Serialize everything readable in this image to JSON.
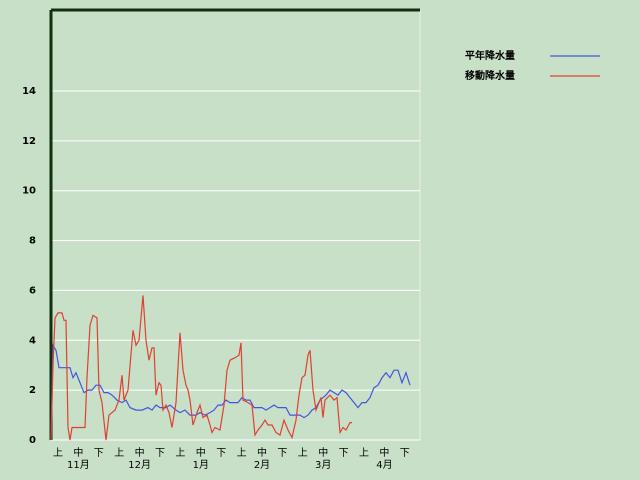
{
  "chart_data": {
    "type": "line",
    "categories": [
      "上",
      "中",
      "下",
      "上",
      "中",
      "下",
      "上",
      "中",
      "下",
      "上",
      "中",
      "下",
      "上",
      "中",
      "下",
      "上",
      "中",
      "下"
    ],
    "months": [
      "11月",
      "12月",
      "1月",
      "2月",
      "3月",
      "4月"
    ],
    "xlim": [
      0,
      369
    ],
    "ylim": [
      0,
      17.25
    ],
    "yticks": [
      0,
      2,
      4,
      6,
      8,
      10,
      12,
      14
    ],
    "grid": true,
    "legend": "top-right",
    "series": [
      {
        "name": "平年降水量",
        "color": "#4455dd",
        "x": [
          0,
          2,
          5,
          8,
          14,
          19,
          22,
          25,
          29,
          33,
          37,
          41,
          45,
          49,
          53,
          57,
          61,
          66,
          71,
          75,
          79,
          85,
          91,
          97,
          101,
          105,
          109,
          115,
          119,
          125,
          129,
          134,
          139,
          145,
          149,
          154,
          159,
          163,
          167,
          171,
          175,
          179,
          183,
          187,
          191,
          195,
          199,
          203,
          207,
          211,
          215,
          219,
          223,
          227,
          231,
          235,
          239,
          245,
          249,
          253,
          257,
          261,
          265,
          269,
          275,
          279,
          283,
          287,
          291,
          295,
          299,
          303,
          307,
          311,
          315,
          319,
          323,
          327,
          331,
          335,
          339,
          343,
          347,
          351,
          355,
          359
        ],
        "values": [
          0,
          3.8,
          3.6,
          2.9,
          2.9,
          2.9,
          2.5,
          2.7,
          2.3,
          1.9,
          2.0,
          2.0,
          2.2,
          2.2,
          1.9,
          1.9,
          1.8,
          1.6,
          1.5,
          1.6,
          1.3,
          1.2,
          1.2,
          1.3,
          1.2,
          1.4,
          1.3,
          1.3,
          1.4,
          1.2,
          1.1,
          1.2,
          1.0,
          1.0,
          1.1,
          1.0,
          1.1,
          1.2,
          1.4,
          1.4,
          1.6,
          1.5,
          1.5,
          1.5,
          1.7,
          1.6,
          1.6,
          1.3,
          1.3,
          1.3,
          1.2,
          1.3,
          1.4,
          1.3,
          1.3,
          1.3,
          1.0,
          1.0,
          1.0,
          0.9,
          1.0,
          1.2,
          1.3,
          1.6,
          1.8,
          2.0,
          1.9,
          1.8,
          2.0,
          1.9,
          1.7,
          1.5,
          1.3,
          1.5,
          1.5,
          1.7,
          2.1,
          2.2,
          2.5,
          2.7,
          2.5,
          2.8,
          2.8,
          2.3,
          2.7,
          2.2
        ]
      },
      {
        "name": "移動降水量",
        "color": "#e04030",
        "x": [
          0,
          2,
          4,
          7,
          11,
          13,
          15,
          17,
          19,
          21,
          29,
          34,
          36,
          39,
          42,
          46,
          48,
          51,
          55,
          58,
          64,
          68,
          71,
          73,
          77,
          82,
          85,
          88,
          92,
          95,
          98,
          101,
          103,
          105,
          108,
          110,
          112,
          115,
          118,
          121,
          125,
          129,
          132,
          135,
          137,
          139,
          142,
          146,
          149,
          152,
          156,
          159,
          161,
          164,
          169,
          173,
          176,
          179,
          184,
          188,
          190,
          192,
          197,
          201,
          204,
          207,
          211,
          214,
          217,
          221,
          225,
          229,
          233,
          237,
          241,
          245,
          248,
          251,
          254,
          257,
          259,
          262,
          265,
          270,
          272,
          274,
          279,
          283,
          286,
          289,
          292,
          295,
          299,
          301
        ],
        "values": [
          0,
          3,
          4.9,
          5.1,
          5.1,
          4.8,
          4.8,
          0.5,
          0,
          0.5,
          0.5,
          0.5,
          2.5,
          4.6,
          5.0,
          4.9,
          2.0,
          1.5,
          0,
          1,
          1.2,
          1.6,
          2.6,
          1.6,
          2,
          4.4,
          3.8,
          4.0,
          5.8,
          4,
          3.2,
          3.7,
          3.7,
          1.8,
          2.3,
          2.2,
          1.2,
          1.4,
          1.1,
          0.5,
          1.5,
          4.3,
          2.8,
          2.2,
          2.0,
          1.6,
          0.6,
          1.1,
          1.4,
          0.9,
          1.0,
          0.6,
          0.3,
          0.5,
          0.4,
          1.4,
          2.8,
          3.2,
          3.3,
          3.4,
          3.9,
          1.6,
          1.5,
          1.4,
          0.2,
          0.4,
          0.6,
          0.8,
          0.6,
          0.6,
          0.3,
          0.2,
          0.8,
          0.4,
          0.1,
          0.8,
          1.8,
          2.5,
          2.6,
          3.4,
          3.6,
          2.0,
          1.2,
          1.7,
          0.9,
          1.6,
          1.8,
          1.6,
          1.7,
          0.3,
          0.5,
          0.4,
          0.7,
          0.7
        ]
      }
    ]
  }
}
